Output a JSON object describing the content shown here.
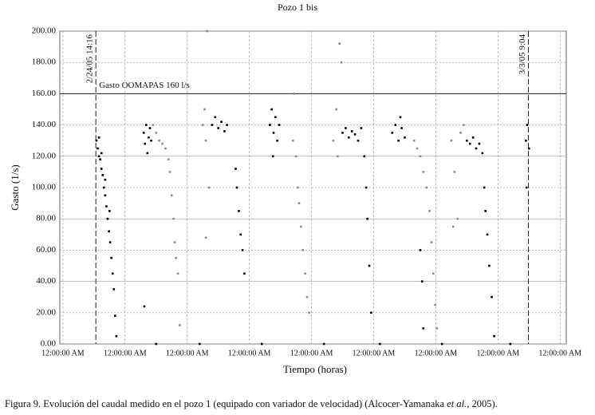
{
  "chart_data": {
    "type": "scatter",
    "title": "Pozo 1 bis",
    "x_label": "Tiempo (horas)",
    "y_label": "Gasto (1/s)",
    "caption": [
      "Figura 9. Evolución del caudal medido en el pozo 1 (equipado con variador de velocidad) (Alcocer-Yamanaka ",
      "et al.",
      ", 2005)."
    ],
    "xlim": [
      -0.05,
      8.1
    ],
    "ylim": [
      0,
      200
    ],
    "xticks": [
      {
        "value": 0,
        "label": "12:00:00 AM"
      },
      {
        "value": 1,
        "label": "12:00:00 AM"
      },
      {
        "value": 2,
        "label": "12:00:00 AM"
      },
      {
        "value": 3,
        "label": "12:00:00 AM"
      },
      {
        "value": 4,
        "label": "12:00:00 AM"
      },
      {
        "value": 5,
        "label": "12:00:00 AM"
      },
      {
        "value": 6,
        "label": "12:00:00 AM"
      },
      {
        "value": 7,
        "label": "12:00:00 AM"
      },
      {
        "value": 8,
        "label": "12:00:00 AM"
      }
    ],
    "yticks": [
      {
        "value": 0,
        "label": "0.00"
      },
      {
        "value": 20,
        "label": "20.00"
      },
      {
        "value": 40,
        "label": "40.00"
      },
      {
        "value": 60,
        "label": "60.00"
      },
      {
        "value": 80,
        "label": "80.00"
      },
      {
        "value": 100,
        "label": "100.00"
      },
      {
        "value": 120,
        "label": "120.00"
      },
      {
        "value": 140,
        "label": "140.00"
      },
      {
        "value": 160,
        "label": "160.00"
      },
      {
        "value": 180,
        "label": "180.00"
      },
      {
        "value": 200,
        "label": "200.00"
      }
    ],
    "grid": true,
    "vlines": [
      {
        "x": 0.53,
        "label": "2/24/05 14:16"
      },
      {
        "x": 7.49,
        "label": "3/3/05 9:04"
      }
    ],
    "hline": {
      "y": 160,
      "label": "Gasto OOMAPAS  160 l/s"
    },
    "series": [
      {
        "color": "#000000",
        "x": [
          0.54,
          0.56,
          0.58,
          0.6,
          0.62,
          0.64,
          0.66,
          0.68,
          0.7,
          0.72,
          0.74,
          0.76,
          0.78,
          0.8,
          0.82,
          0.84,
          0.86,
          0.58,
          0.62,
          0.68,
          0.75,
          1.3,
          1.32,
          1.34,
          1.36,
          1.38,
          1.4,
          1.42,
          1.31,
          2.4,
          2.45,
          2.5,
          2.55,
          2.6,
          2.64,
          2.78,
          2.8,
          2.83,
          2.86,
          2.89,
          2.92,
          3.33,
          3.36,
          3.39,
          3.42,
          3.45,
          3.48,
          3.38,
          4.5,
          4.55,
          4.6,
          4.65,
          4.7,
          4.75,
          4.8,
          4.85,
          4.88,
          4.9,
          4.93,
          4.96,
          5.3,
          5.35,
          5.4,
          5.45,
          5.5,
          5.43,
          5.75,
          5.78,
          5.8,
          6.5,
          6.55,
          6.6,
          6.65,
          6.7,
          6.75,
          6.78,
          6.8,
          6.83,
          6.86,
          6.9,
          6.94,
          7.45,
          7.47,
          7.5,
          7.46,
          1.5,
          2.2,
          3.2,
          4.2,
          5.1,
          6.1,
          7.2
        ],
        "values": [
          130,
          125,
          120,
          118,
          112,
          108,
          100,
          95,
          88,
          80,
          72,
          65,
          55,
          45,
          35,
          18,
          5,
          132,
          122,
          105,
          85,
          135,
          128,
          140,
          122,
          132,
          138,
          130,
          24,
          140,
          145,
          138,
          142,
          136,
          140,
          112,
          100,
          85,
          70,
          60,
          45,
          140,
          150,
          135,
          145,
          130,
          140,
          120,
          135,
          138,
          132,
          136,
          134,
          130,
          138,
          120,
          100,
          80,
          50,
          20,
          135,
          140,
          130,
          138,
          132,
          145,
          60,
          40,
          10,
          130,
          128,
          132,
          125,
          128,
          122,
          100,
          85,
          70,
          50,
          30,
          5,
          130,
          140,
          125,
          100,
          0,
          0,
          0,
          0,
          0,
          0,
          0
        ]
      },
      {
        "color": "#8c8c8c",
        "x": [
          1.45,
          1.5,
          1.55,
          1.6,
          1.65,
          1.7,
          1.72,
          1.75,
          1.78,
          1.8,
          1.82,
          1.85,
          1.88,
          2.25,
          2.28,
          2.3,
          2.35,
          2.32,
          2.3,
          3.7,
          3.75,
          3.78,
          3.8,
          3.83,
          3.86,
          3.9,
          3.93,
          3.96,
          3.72,
          4.35,
          4.4,
          4.42,
          4.45,
          4.48,
          5.65,
          5.7,
          5.75,
          5.8,
          5.85,
          5.9,
          5.93,
          5.96,
          5.99,
          6.02,
          6.25,
          6.3,
          6.35,
          6.28,
          6.4,
          6.45
        ],
        "values": [
          140,
          135,
          130,
          128,
          125,
          118,
          110,
          95,
          80,
          65,
          55,
          45,
          12,
          140,
          150,
          130,
          100,
          200,
          68,
          130,
          120,
          100,
          90,
          75,
          60,
          45,
          30,
          20,
          160,
          130,
          150,
          120,
          192,
          180,
          130,
          125,
          120,
          110,
          100,
          85,
          65,
          45,
          25,
          10,
          130,
          110,
          80,
          75,
          135,
          140
        ]
      }
    ]
  }
}
